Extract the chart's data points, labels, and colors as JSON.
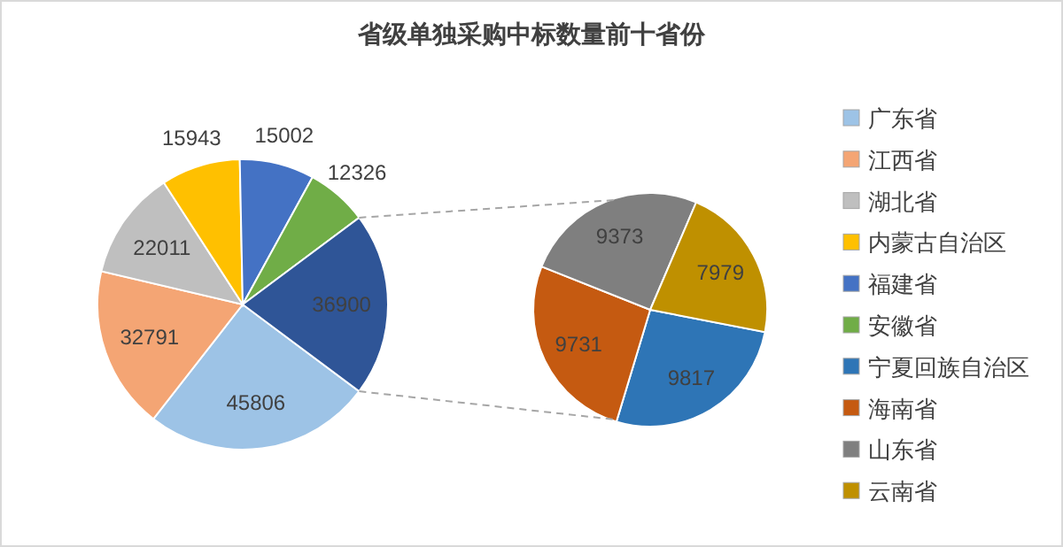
{
  "chart_data": [
    {
      "type": "pie",
      "title": "省级单独采购中标数量前十省份",
      "categories": [
        "广东省",
        "江西省",
        "湖北省",
        "内蒙古自治区",
        "福建省",
        "安徽省",
        null
      ],
      "values": [
        45806,
        32791,
        22011,
        15943,
        15002,
        12326,
        36900
      ],
      "colors": [
        "#9dc3e6",
        "#f4a574",
        "#bfbfbf",
        "#ffc000",
        "#4472c4",
        "#70ad47",
        "#2f5597"
      ],
      "data_labels": true,
      "legend": "right"
    },
    {
      "type": "pie",
      "categories": [
        "宁夏回族自治区",
        "海南省",
        "山东省",
        "云南省"
      ],
      "values": [
        9817,
        9731,
        9373,
        7979
      ],
      "colors": [
        "#2e75b6",
        "#c55a11",
        "#7f7f7f",
        "#bf9000"
      ],
      "data_labels": true,
      "legend": "right"
    }
  ]
}
